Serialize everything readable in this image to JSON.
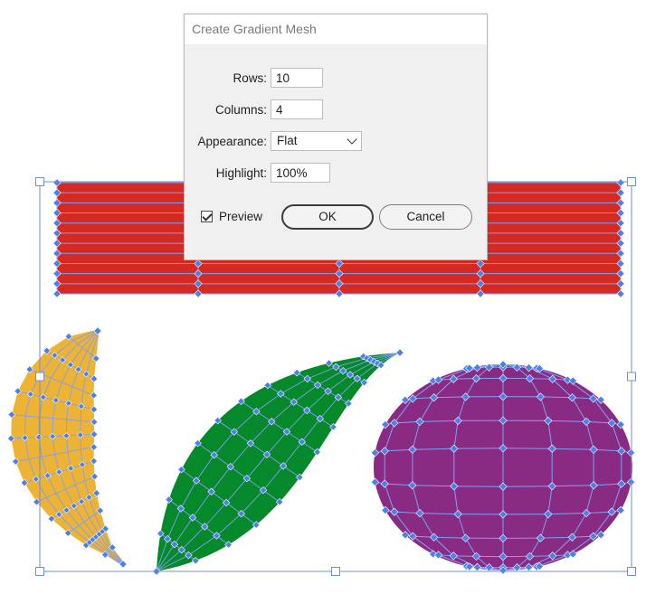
{
  "dialog": {
    "title": "Create Gradient Mesh",
    "rows_label": "Rows:",
    "rows_value": "10",
    "columns_label": "Columns:",
    "columns_value": "4",
    "appearance_label": "Appearance:",
    "appearance_value": "Flat",
    "highlight_label": "Highlight:",
    "highlight_value": "100%",
    "preview_label": "Preview",
    "preview_checked": true,
    "ok_label": "OK",
    "cancel_label": "Cancel"
  },
  "artwork": {
    "colors": {
      "rectangle": "#d52a21",
      "teardrop": "#ecb334",
      "leaf": "#06892a",
      "sphere": "#8a2b83",
      "mesh_line": "#7f9ff5",
      "mesh_point": "#4d7fe8",
      "selection": "#6d8fd6"
    },
    "icons": {
      "checkbox": "checkmark-icon",
      "dropdown": "chevron-down-icon"
    }
  }
}
